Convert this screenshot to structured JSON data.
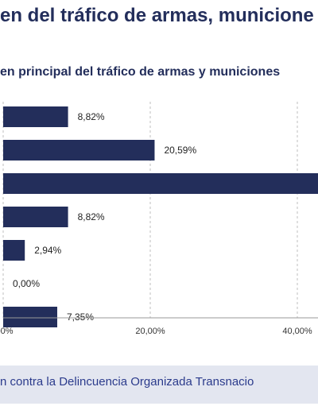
{
  "header": {
    "title": "en del tráfico de armas, municione"
  },
  "chart_data": {
    "type": "bar",
    "orientation": "horizontal",
    "title": "en principal del tráfico de armas y municiones",
    "xlabel": "",
    "ylabel": "",
    "xlim": [
      0,
      45
    ],
    "xticks": [
      0,
      20,
      40
    ],
    "xtick_labels": [
      ",00%",
      "20,00%",
      "40,00%"
    ],
    "values": [
      8.82,
      20.59,
      45,
      8.82,
      2.94,
      0.0,
      7.35
    ],
    "value_labels": [
      "8,82%",
      "20,59%",
      "",
      "8,82%",
      "2,94%",
      "0,00%",
      "7,35%"
    ],
    "bar_color": "#232e5b",
    "grid": "vertical dashed"
  },
  "footer": {
    "text": "n contra la Delincuencia Organizada Transnacio"
  },
  "colors": {
    "navy": "#232e5b",
    "footer_bg": "#e3e6f0",
    "footer_text": "#2b3b8c"
  }
}
